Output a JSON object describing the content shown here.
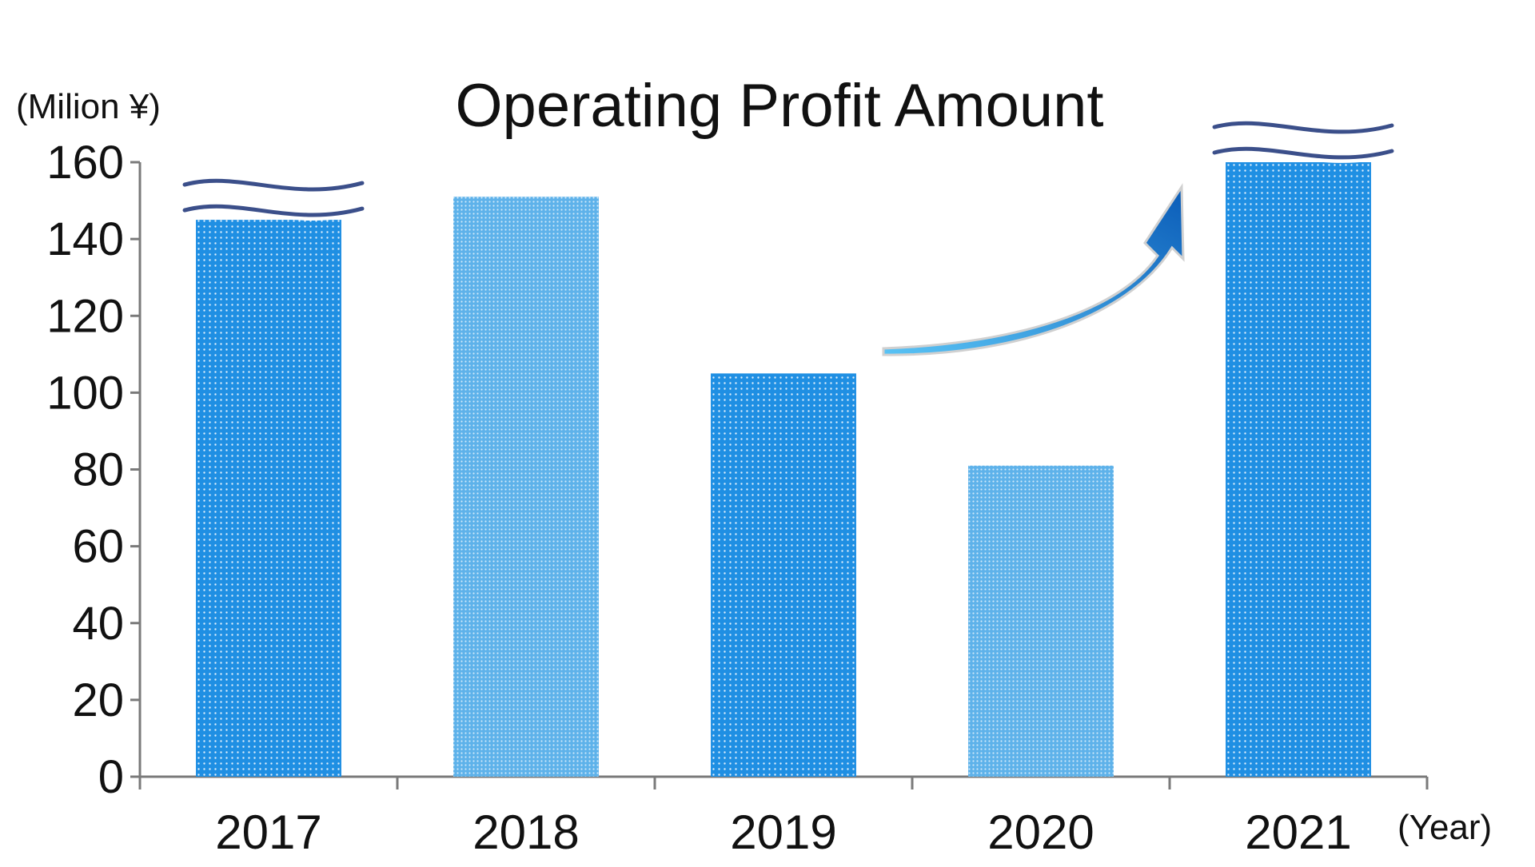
{
  "chart_data": {
    "type": "bar",
    "title": "Operating Profit Amount",
    "ylabel": "(Milion ¥)",
    "xlabel": "(Year)",
    "categories": [
      "2017",
      "2018",
      "2019",
      "2020",
      "2021"
    ],
    "values": [
      145,
      151,
      105,
      81,
      160
    ],
    "ylim": [
      0,
      160
    ],
    "yticks": [
      "0",
      "20",
      "40",
      "60",
      "80",
      "100",
      "120",
      "140",
      "160"
    ],
    "axis_break_on": [
      "2017",
      "2021"
    ],
    "grid": false,
    "legend": "none",
    "colors": {
      "bar_dark": "#1f8fe3",
      "bar_light": "#5eb2ea",
      "dot": "#ffffff",
      "axis": "#7a7a7a",
      "arrow_start": "#59c3f5",
      "arrow_end": "#0a5cb8",
      "break_line": "#3b4f8a"
    },
    "annotations": [
      "upward-trend-arrow"
    ]
  }
}
